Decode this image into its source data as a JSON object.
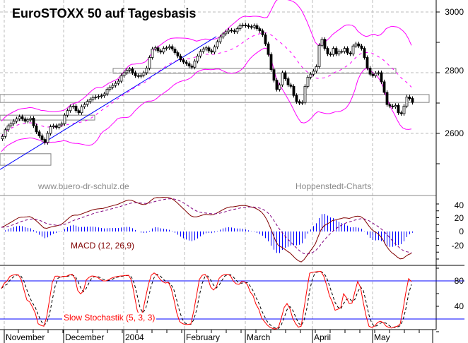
{
  "chart_data": {
    "type": "candlestick",
    "title": "EuroSTOXX 50 auf Tagesbasis",
    "watermarks": [
      "www.buero-dr-schulz.de",
      "Hoppenstedt-Charts"
    ],
    "x_tick_labels": [
      "November",
      "December",
      "2004",
      "February",
      "March",
      "April",
      "May"
    ],
    "price_axis": {
      "ylim": [
        2450,
        3040
      ],
      "tick_labels": [
        "3000",
        "2800",
        "2600"
      ]
    },
    "close": [
      2590,
      2612,
      2625,
      2632,
      2640,
      2648,
      2655,
      2648,
      2640,
      2645,
      2650,
      2625,
      2605,
      2592,
      2580,
      2570,
      2600,
      2622,
      2625,
      2620,
      2628,
      2632,
      2660,
      2675,
      2688,
      2690,
      2675,
      2668,
      2688,
      2695,
      2705,
      2712,
      2718,
      2720,
      2722,
      2724,
      2730,
      2745,
      2752,
      2758,
      2765,
      2772,
      2790,
      2800,
      2808,
      2812,
      2800,
      2790,
      2788,
      2792,
      2800,
      2815,
      2850,
      2878,
      2882,
      2872,
      2868,
      2880,
      2882,
      2886,
      2878,
      2866,
      2855,
      2842,
      2835,
      2830,
      2822,
      2818,
      2838,
      2855,
      2870,
      2878,
      2882,
      2872,
      2868,
      2885,
      2902,
      2918,
      2928,
      2935,
      2940,
      2938,
      2935,
      2945,
      2955,
      2957,
      2955,
      2952,
      2950,
      2955,
      2945,
      2938,
      2925,
      2895,
      2860,
      2810,
      2775,
      2745,
      2760,
      2800,
      2780,
      2760,
      2755,
      2725,
      2705,
      2700,
      2702,
      2755,
      2785,
      2795,
      2805,
      2820,
      2890,
      2910,
      2880,
      2862,
      2860,
      2880,
      2862,
      2870,
      2870,
      2880,
      2865,
      2862,
      2888,
      2895,
      2888,
      2880,
      2850,
      2815,
      2795,
      2790,
      2798,
      2800,
      2770,
      2735,
      2695,
      2690,
      2688,
      2692,
      2668,
      2665,
      2690,
      2720,
      2715,
      2702
    ],
    "bollinger": {
      "period": 20,
      "stddev": 2,
      "color": "#ff00ff"
    },
    "trendline": {
      "from_price": 2481,
      "to_price": 2919,
      "color": "#0000ff"
    },
    "zones": [
      {
        "low": 2798,
        "high": 2814
      },
      {
        "low": 2702,
        "high": 2728
      },
      {
        "low": 2644,
        "high": 2660
      },
      {
        "low": 2495,
        "high": 2533
      }
    ],
    "macd": {
      "label": "MACD (12, 26,9)",
      "tick_labels": [
        "40",
        "20",
        "0",
        "-20"
      ],
      "ylim": [
        -50,
        50
      ],
      "line_color": "#800000",
      "signal_color": "#800080",
      "histogram_color": "#0000ff"
    },
    "stochastic": {
      "label": "Slow Stochastik (5, 3, 3)",
      "tick_labels": [
        "80",
        "40"
      ],
      "ylim": [
        0,
        100
      ],
      "levels": [
        80,
        20
      ],
      "k_color": "#ff0000",
      "d_color": "#000000",
      "level_color": "#0000ff"
    }
  }
}
